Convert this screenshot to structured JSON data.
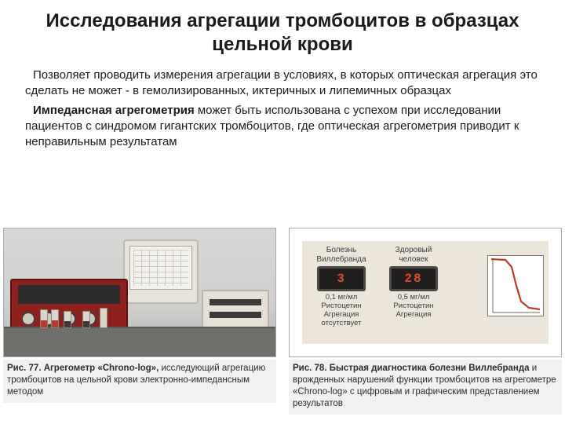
{
  "title": "Исследования агрегации тромбоцитов в образцах цельной крови",
  "para1": "Позволяет проводить измерения агрегации в условиях, в которых оптическая агрегация это сделать не может - в гемолизированных, иктеричных и липемичных образцах",
  "para2_bold": "Импедансная агрегометрия",
  "para2_rest": " может быть использована с успехом при исследовании пациентов с синдромом гигантских тромбоцитов, где оптическая агрегометрия приводит к неправильным результатам",
  "fig77": {
    "caption_bold": "Рис. 77. Агрегометр «Chrono-log»,",
    "caption_rest": " исследующий агрега­цию тромбоцитов на цельной крови электронно-импеданс­ным методом",
    "colors": {
      "instrument": "#8e211e",
      "instrument_border": "#5e1311",
      "bench": "#6f6f6c",
      "bg_top": "#d8d8d6",
      "bg_bot": "#b5b5b2",
      "crt_body": "#e7e3da",
      "pc_body": "#e4e0d5"
    }
  },
  "fig78": {
    "caption_bold": "Рис. 78. Быстрая диагностика болезни Виллебранда",
    "caption_rest": " и врожденных нарушений функции тромбоцитов на агрего­метре «Chrono-log» с цифровым и графическим представ­лением результатов",
    "panel_bg": "#ebe6d9",
    "display_bg": "#201f1e",
    "display_text_color": "#e04a2c",
    "left": {
      "header": "Болезнь\nВиллебранда",
      "value": "3",
      "footer": "0,1 мг/мл\nРистоцетин\nАгрегация\nотсутствует"
    },
    "right": {
      "header": "Здоровый\nчеловек",
      "value": "28",
      "footer": "0,5 мг/мл\nРистоцетин\nАгрегация"
    },
    "chart": {
      "curve_color": "#c0392b",
      "axis_color": "#6e6a5e",
      "bg": "#ffffff",
      "points": [
        [
          4,
          4
        ],
        [
          22,
          5
        ],
        [
          30,
          14
        ],
        [
          36,
          38
        ],
        [
          42,
          58
        ],
        [
          52,
          66
        ],
        [
          66,
          68
        ]
      ]
    }
  }
}
